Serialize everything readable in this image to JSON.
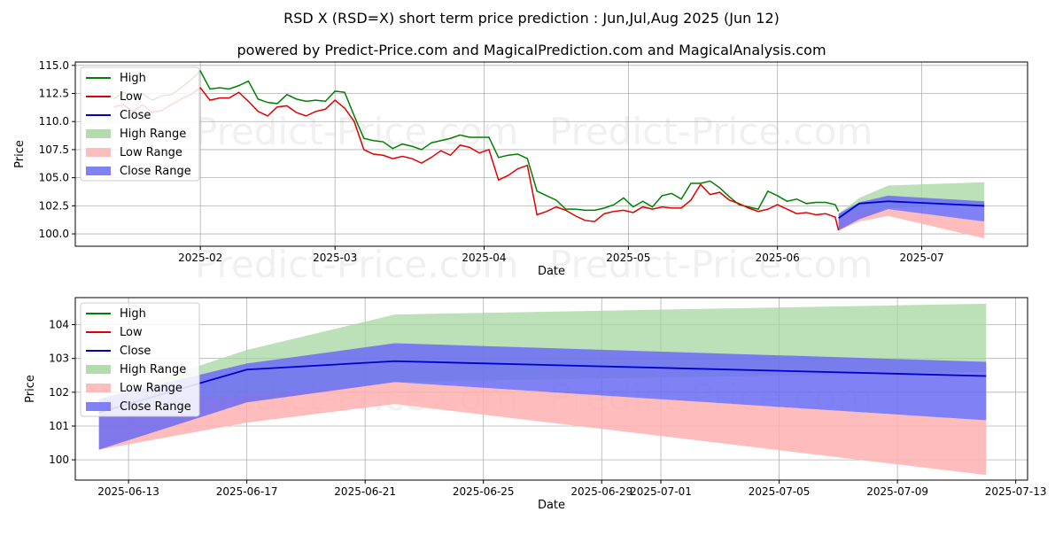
{
  "title": "RSD X (RSD=X) short term price prediction : Jun,Jul,Aug 2025 (Jun 12)",
  "subtitle": "powered by Predict-Price.com and MagicalPrediction.com and MagicalAnalysis.com",
  "watermark": "Predict-Price.com",
  "colors": {
    "high": "#008000",
    "low": "#e00000",
    "close": "#0000cc",
    "high_range": "#a6d5a0",
    "low_range": "#ffb0b0",
    "close_range": "#6b6bf5"
  },
  "legend": [
    {
      "key": "high",
      "label": "High",
      "kind": "line"
    },
    {
      "key": "low",
      "label": "Low",
      "kind": "line"
    },
    {
      "key": "close",
      "label": "Close",
      "kind": "line"
    },
    {
      "key": "high_range",
      "label": "High Range",
      "kind": "patch"
    },
    {
      "key": "low_range",
      "label": "Low Range",
      "kind": "patch"
    },
    {
      "key": "close_range",
      "label": "Close Range",
      "kind": "patch"
    }
  ],
  "chart_data": [
    {
      "type": "line",
      "xlabel": "Date",
      "ylabel": "Price",
      "grid": true,
      "legend_position": "top-left",
      "x_origin": "2025-01-01",
      "xlim": [
        5,
        203
      ],
      "ylim": [
        98.9,
        115.3
      ],
      "xticks": [
        {
          "v": 31,
          "label": "2025-02"
        },
        {
          "v": 59,
          "label": "2025-03"
        },
        {
          "v": 90,
          "label": "2025-04"
        },
        {
          "v": 120,
          "label": "2025-05"
        },
        {
          "v": 151,
          "label": "2025-06"
        },
        {
          "v": 181,
          "label": "2025-07"
        }
      ],
      "yticks": [
        {
          "v": 100,
          "label": "100.0"
        },
        {
          "v": 102.5,
          "label": "102.5"
        },
        {
          "v": 105,
          "label": "105.0"
        },
        {
          "v": 107.5,
          "label": "107.5"
        },
        {
          "v": 110,
          "label": "110.0"
        },
        {
          "v": 112.5,
          "label": "112.5"
        },
        {
          "v": 115,
          "label": "115.0"
        }
      ],
      "series": [
        {
          "name": "High",
          "key": "high",
          "x": [
            13,
            15,
            17,
            19,
            21,
            23,
            25,
            27,
            29,
            31,
            33,
            35,
            37,
            39,
            41,
            43,
            45,
            47,
            49,
            51,
            53,
            55,
            57,
            59,
            61,
            63,
            65,
            67,
            69,
            71,
            73,
            75,
            77,
            79,
            81,
            83,
            85,
            87,
            89,
            91,
            93,
            95,
            97,
            99,
            101,
            103,
            105,
            107,
            109,
            111,
            113,
            115,
            117,
            119,
            121,
            123,
            125,
            127,
            129,
            131,
            133,
            135,
            137,
            139,
            141,
            143,
            145,
            147,
            149,
            151,
            153,
            155,
            157,
            159,
            161,
            163,
            163.7
          ],
          "y": [
            112.0,
            112.6,
            112.3,
            112.5,
            111.9,
            112.3,
            112.4,
            113.0,
            113.7,
            114.5,
            112.9,
            113.0,
            112.9,
            113.2,
            113.6,
            112.0,
            111.7,
            111.6,
            112.4,
            112.0,
            111.8,
            111.9,
            111.8,
            112.7,
            112.6,
            110.5,
            108.5,
            108.3,
            108.2,
            107.6,
            108.0,
            107.8,
            107.5,
            108.1,
            108.3,
            108.5,
            108.8,
            108.6,
            108.6,
            108.6,
            106.8,
            107.0,
            107.1,
            106.7,
            103.8,
            103.4,
            103.0,
            102.2,
            102.2,
            102.1,
            102.1,
            102.3,
            102.6,
            103.2,
            102.4,
            102.9,
            102.4,
            103.4,
            103.6,
            103.1,
            104.5,
            104.5,
            104.7,
            104.1,
            103.3,
            102.6,
            102.4,
            102.2,
            103.8,
            103.4,
            102.9,
            103.1,
            102.7,
            102.8,
            102.8,
            102.6,
            102.0
          ]
        },
        {
          "name": "Low",
          "key": "low",
          "x": [
            13,
            15,
            17,
            19,
            21,
            23,
            25,
            27,
            29,
            31,
            33,
            35,
            37,
            39,
            41,
            43,
            45,
            47,
            49,
            51,
            53,
            55,
            57,
            59,
            61,
            63,
            65,
            67,
            69,
            71,
            73,
            75,
            77,
            79,
            81,
            83,
            85,
            87,
            89,
            91,
            93,
            95,
            97,
            99,
            101,
            103,
            105,
            107,
            109,
            111,
            113,
            115,
            117,
            119,
            121,
            123,
            125,
            127,
            129,
            131,
            133,
            135,
            137,
            139,
            141,
            143,
            145,
            147,
            149,
            151,
            153,
            155,
            157,
            159,
            161,
            163,
            163.7
          ],
          "y": [
            111.3,
            111.5,
            110.9,
            111.5,
            110.8,
            111.0,
            111.5,
            112.0,
            112.4,
            113.0,
            111.9,
            112.1,
            112.1,
            112.6,
            111.8,
            110.9,
            110.5,
            111.3,
            111.4,
            110.8,
            110.5,
            110.9,
            111.1,
            111.9,
            111.2,
            110.0,
            107.5,
            107.1,
            107.0,
            106.7,
            106.9,
            106.7,
            106.3,
            106.8,
            107.4,
            107.0,
            107.9,
            107.7,
            107.2,
            107.5,
            104.8,
            105.2,
            105.8,
            106.1,
            101.7,
            102.0,
            102.4,
            102.1,
            101.6,
            101.2,
            101.1,
            101.8,
            102.0,
            102.1,
            101.9,
            102.4,
            102.2,
            102.4,
            102.3,
            102.3,
            103.0,
            104.4,
            103.5,
            103.7,
            103.0,
            102.7,
            102.3,
            102.0,
            102.2,
            102.6,
            102.2,
            101.8,
            101.9,
            101.7,
            101.8,
            101.5,
            100.3
          ]
        }
      ],
      "forecast": {
        "x": [
          163.7,
          168,
          174,
          194
        ],
        "high": [
          101.8,
          103.2,
          104.3,
          104.6
        ],
        "low": [
          100.3,
          101.3,
          101.8,
          99.6
        ],
        "close": [
          101.4,
          102.7,
          102.9,
          102.5
        ],
        "high_range": {
          "upper": [
            101.8,
            103.2,
            104.3,
            104.6
          ],
          "lower": [
            100.6,
            101.7,
            102.3,
            102.6
          ]
        },
        "low_range": {
          "upper": [
            101.8,
            101.9,
            102.2,
            101.1
          ],
          "lower": [
            100.3,
            101.1,
            101.6,
            99.6
          ]
        },
        "close_range": {
          "upper": [
            101.8,
            102.8,
            103.4,
            102.9
          ],
          "lower": [
            100.3,
            101.3,
            102.2,
            101.1
          ]
        }
      }
    },
    {
      "type": "area",
      "xlabel": "Date",
      "ylabel": "Price",
      "grid": true,
      "legend_position": "top-left",
      "x_origin": "2025-06-12",
      "xlim": [
        -0.8,
        31.4
      ],
      "ylim": [
        99.4,
        104.8
      ],
      "xticks": [
        {
          "v": 1,
          "label": "2025-06-13"
        },
        {
          "v": 5,
          "label": "2025-06-17"
        },
        {
          "v": 9,
          "label": "2025-06-21"
        },
        {
          "v": 13,
          "label": "2025-06-25"
        },
        {
          "v": 17,
          "label": "2025-06-29"
        },
        {
          "v": 19,
          "label": "2025-07-01"
        },
        {
          "v": 23,
          "label": "2025-07-05"
        },
        {
          "v": 27,
          "label": "2025-07-09"
        },
        {
          "v": 31,
          "label": "2025-07-13"
        }
      ],
      "yticks": [
        {
          "v": 100,
          "label": "100"
        },
        {
          "v": 101,
          "label": "101"
        },
        {
          "v": 102,
          "label": "102"
        },
        {
          "v": 103,
          "label": "103"
        },
        {
          "v": 104,
          "label": "104"
        }
      ],
      "x": [
        0,
        5,
        10,
        30
      ],
      "high": [
        101.8,
        103.25,
        104.3,
        104.62
      ],
      "low": [
        100.3,
        101.1,
        101.65,
        99.55
      ],
      "close": [
        101.4,
        102.67,
        102.92,
        102.48
      ],
      "high_range": {
        "upper": [
          101.8,
          103.25,
          104.3,
          104.62
        ],
        "lower": [
          100.5,
          101.7,
          102.3,
          102.6
        ]
      },
      "low_range": {
        "upper": [
          101.8,
          101.9,
          102.3,
          101.17
        ],
        "lower": [
          100.3,
          101.1,
          101.65,
          99.55
        ]
      },
      "close_range": {
        "upper": [
          101.8,
          102.85,
          103.45,
          102.9
        ],
        "lower": [
          100.3,
          101.7,
          102.3,
          101.17
        ]
      }
    }
  ]
}
